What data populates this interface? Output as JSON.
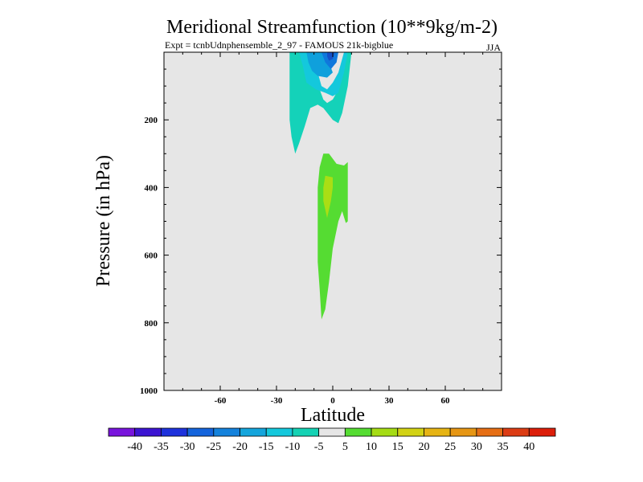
{
  "chart_data": {
    "type": "contour",
    "title": "Meridional Streamfunction (10**9kg/m-2)",
    "subtitle_experiment": "Expt = tcnbUdnphensemble_2_97 - FAMOUS 21k-bigblue",
    "season": "JJA",
    "xlabel": "Latitude",
    "ylabel": "Pressure (in hPa)",
    "xlim": [
      -90,
      90
    ],
    "ylim": [
      1000,
      0
    ],
    "x_ticks": [
      -60,
      -30,
      0,
      30,
      60
    ],
    "x_tick_labels": [
      "-60",
      "-30",
      "0",
      "30",
      "60"
    ],
    "y_ticks": [
      200,
      400,
      600,
      800,
      1000
    ],
    "y_tick_labels": [
      "200",
      "400",
      "600",
      "800",
      "1000"
    ],
    "background_color": "#e6e6e6",
    "contour_regions": [
      {
        "name": "negative-cell-outer",
        "level": "-10 to -5",
        "color": "#14d2b9",
        "polygon": [
          [
            -23,
            0
          ],
          [
            -10,
            0
          ],
          [
            -9,
            50
          ],
          [
            -7,
            110
          ],
          [
            -5,
            140
          ],
          [
            -3,
            150
          ],
          [
            0,
            140
          ],
          [
            3,
            110
          ],
          [
            5,
            50
          ],
          [
            7,
            0
          ],
          [
            10,
            0
          ],
          [
            8,
            100
          ],
          [
            5,
            180
          ],
          [
            3,
            210
          ],
          [
            0,
            200
          ],
          [
            -5,
            165
          ],
          [
            -8,
            155
          ],
          [
            -12,
            165
          ],
          [
            -15,
            220
          ],
          [
            -18,
            270
          ],
          [
            -20,
            300
          ],
          [
            -22,
            250
          ],
          [
            -23,
            200
          ],
          [
            -23,
            100
          ]
        ]
      },
      {
        "name": "negative-cell-mid",
        "level": "-15 to -10",
        "color": "#14c8dc",
        "polygon": [
          [
            -18,
            0
          ],
          [
            -10,
            0
          ],
          [
            -8,
            60
          ],
          [
            -6,
            100
          ],
          [
            -3,
            110
          ],
          [
            0,
            90
          ],
          [
            3,
            60
          ],
          [
            6,
            0
          ],
          [
            8,
            0
          ],
          [
            6,
            60
          ],
          [
            3,
            120
          ],
          [
            0,
            130
          ],
          [
            -4,
            120
          ],
          [
            -9,
            110
          ],
          [
            -14,
            90
          ],
          [
            -16,
            40
          ]
        ]
      },
      {
        "name": "negative-cell-inner",
        "level": "-20 to -15",
        "color": "#0fa0dc",
        "polygon": [
          [
            -14,
            0
          ],
          [
            -4,
            0
          ],
          [
            -2,
            30
          ],
          [
            0,
            60
          ],
          [
            -3,
            75
          ],
          [
            -8,
            70
          ],
          [
            -11,
            55
          ],
          [
            -13,
            30
          ]
        ]
      },
      {
        "name": "negative-cell-core",
        "level": "-25 to -20",
        "color": "#0f78dc",
        "polygon": [
          [
            -6,
            0
          ],
          [
            3,
            0
          ],
          [
            2,
            30
          ],
          [
            -1,
            50
          ],
          [
            -4,
            30
          ]
        ]
      },
      {
        "name": "negative-cell-peak",
        "level": "-30 to -25",
        "color": "#1450c8",
        "polygon": [
          [
            -3,
            0
          ],
          [
            1,
            0
          ],
          [
            0,
            20
          ],
          [
            -2,
            25
          ],
          [
            -3,
            12
          ]
        ]
      },
      {
        "name": "positive-cell-outer",
        "level": "5 to 10",
        "color": "#55dc32",
        "polygon": [
          [
            -5,
            300
          ],
          [
            -2,
            300
          ],
          [
            2,
            330
          ],
          [
            6,
            335
          ],
          [
            8,
            325
          ],
          [
            8,
            400
          ],
          [
            8,
            500
          ],
          [
            7,
            505
          ],
          [
            5,
            470
          ],
          [
            3,
            500
          ],
          [
            0,
            580
          ],
          [
            -2,
            680
          ],
          [
            -4,
            760
          ],
          [
            -6,
            790
          ],
          [
            -7,
            700
          ],
          [
            -8,
            620
          ],
          [
            -8,
            500
          ],
          [
            -8,
            400
          ],
          [
            -7,
            340
          ]
        ]
      },
      {
        "name": "positive-cell-inner",
        "level": "10 to 15",
        "color": "#aade14",
        "polygon": [
          [
            -4,
            365
          ],
          [
            0,
            370
          ],
          [
            0,
            400
          ],
          [
            -1,
            440
          ],
          [
            -3,
            490
          ],
          [
            -5,
            440
          ],
          [
            -5,
            400
          ]
        ]
      }
    ],
    "colorbar": {
      "labels": [
        "-40",
        "-35",
        "-30",
        "-25",
        "-20",
        "-15",
        "-10",
        "-5",
        "5",
        "10",
        "15",
        "20",
        "25",
        "30",
        "35",
        "40"
      ],
      "colors": [
        "#7814dc",
        "#3c14d2",
        "#1e32dc",
        "#1464dc",
        "#1482dc",
        "#14a5dc",
        "#14c8dc",
        "#14d2b4",
        "#e6e6e6",
        "#55dc32",
        "#a5dc14",
        "#d2d214",
        "#e6b414",
        "#e69614",
        "#e66e14",
        "#dc3c14",
        "#dc1e0a"
      ]
    }
  }
}
